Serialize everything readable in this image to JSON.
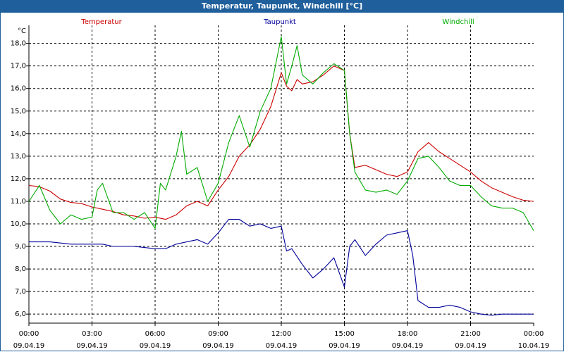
{
  "window": {
    "title": "Temperatur, Taupunkt, Windchill [°C]"
  },
  "chart_data": {
    "type": "line",
    "title": "Temperatur, Taupunkt, Windchill [°C]",
    "y_unit": "°C",
    "ylim": [
      5.6,
      18.8
    ],
    "y_ticks": [
      "6,0",
      "7,0",
      "8,0",
      "9,0",
      "10,0",
      "11,0",
      "12,0",
      "13,0",
      "14,0",
      "15,0",
      "16,0",
      "17,0",
      "18,0"
    ],
    "xlim": [
      0,
      24
    ],
    "x_ticks": [
      {
        "time": "00:00",
        "date": "09.04.19"
      },
      {
        "time": "03:00",
        "date": "09.04.19"
      },
      {
        "time": "06:00",
        "date": "09.04.19"
      },
      {
        "time": "09:00",
        "date": "09.04.19"
      },
      {
        "time": "12:00",
        "date": "09.04.19"
      },
      {
        "time": "15:00",
        "date": "09.04.19"
      },
      {
        "time": "18:00",
        "date": "09.04.19"
      },
      {
        "time": "21:00",
        "date": "09.04.19"
      },
      {
        "time": "00:00",
        "date": "10.04.19"
      }
    ],
    "grid": true,
    "legend_position": "top",
    "series": [
      {
        "name": "Temperatur",
        "color": "#cc0000",
        "x": [
          0,
          0.5,
          1,
          1.5,
          2,
          2.5,
          3,
          3.5,
          4,
          4.5,
          5,
          5.5,
          6,
          6.5,
          7,
          7.5,
          8,
          8.5,
          9,
          9.5,
          10,
          10.5,
          11,
          11.5,
          12,
          12.25,
          12.5,
          12.75,
          13,
          13.5,
          14,
          14.5,
          15,
          15.25,
          15.5,
          16,
          16.5,
          17,
          17.5,
          18,
          18.5,
          19,
          19.5,
          20,
          20.5,
          21,
          21.5,
          22,
          22.5,
          23,
          23.5,
          24
        ],
        "y": [
          11.7,
          11.65,
          11.45,
          11.1,
          10.95,
          10.9,
          10.75,
          10.65,
          10.55,
          10.4,
          10.35,
          10.25,
          10.3,
          10.2,
          10.4,
          10.8,
          11.0,
          10.8,
          11.5,
          12.1,
          13.0,
          13.5,
          14.2,
          15.2,
          16.7,
          16.1,
          15.9,
          16.4,
          16.2,
          16.3,
          16.6,
          17.0,
          16.8,
          14.0,
          12.5,
          12.6,
          12.4,
          12.2,
          12.1,
          12.3,
          13.2,
          13.6,
          13.2,
          12.9,
          12.6,
          12.3,
          11.9,
          11.6,
          11.4,
          11.2,
          11.05,
          11.0
        ]
      },
      {
        "name": "Taupunkt",
        "color": "#000099",
        "x": [
          0,
          0.5,
          1,
          1.5,
          2,
          2.5,
          3,
          3.5,
          4,
          4.5,
          5,
          5.5,
          6,
          6.5,
          7,
          7.5,
          8,
          8.5,
          9,
          9.5,
          10,
          10.5,
          11,
          11.5,
          12,
          12.25,
          12.5,
          13,
          13.5,
          14,
          14.5,
          15,
          15.25,
          15.5,
          16,
          16.5,
          17,
          17.5,
          18,
          18.25,
          18.5,
          19,
          19.5,
          20,
          20.5,
          21,
          21.5,
          22,
          22.5,
          23,
          23.5,
          24
        ],
        "y": [
          9.2,
          9.2,
          9.2,
          9.15,
          9.1,
          9.1,
          9.1,
          9.1,
          9.0,
          9.0,
          9.0,
          8.95,
          8.9,
          8.9,
          9.1,
          9.2,
          9.3,
          9.1,
          9.6,
          10.2,
          10.2,
          9.9,
          10.0,
          9.8,
          9.9,
          8.8,
          8.9,
          8.2,
          7.6,
          8.0,
          8.5,
          7.2,
          9.0,
          9.3,
          8.6,
          9.1,
          9.5,
          9.6,
          9.7,
          8.6,
          6.6,
          6.3,
          6.3,
          6.4,
          6.3,
          6.1,
          6.0,
          5.95,
          6.0,
          6.0,
          6.0,
          6.0
        ]
      },
      {
        "name": "Windchill",
        "color": "#00aa00",
        "x": [
          0,
          0.5,
          1,
          1.5,
          2,
          2.5,
          3,
          3.25,
          3.5,
          4,
          4.5,
          5,
          5.5,
          6,
          6.25,
          6.5,
          7,
          7.25,
          7.5,
          8,
          8.5,
          9,
          9.5,
          10,
          10.5,
          11,
          11.5,
          12,
          12.25,
          12.5,
          12.75,
          13,
          13.5,
          14,
          14.5,
          15,
          15.25,
          15.5,
          16,
          16.5,
          17,
          17.5,
          18,
          18.5,
          19,
          19.5,
          20,
          20.5,
          21,
          21.5,
          22,
          22.5,
          23,
          23.5,
          24
        ],
        "y": [
          11.0,
          11.7,
          10.6,
          10.0,
          10.4,
          10.2,
          10.3,
          11.5,
          11.8,
          10.5,
          10.5,
          10.2,
          10.5,
          9.8,
          11.8,
          11.5,
          13.0,
          14.1,
          12.2,
          12.5,
          11.0,
          11.8,
          13.6,
          14.8,
          13.4,
          15.0,
          16.0,
          18.3,
          16.2,
          17.0,
          17.9,
          16.6,
          16.2,
          16.7,
          17.1,
          16.8,
          14.0,
          12.3,
          11.5,
          11.4,
          11.5,
          11.3,
          11.9,
          12.9,
          13.0,
          12.5,
          11.9,
          11.7,
          11.7,
          11.2,
          10.8,
          10.7,
          10.7,
          10.5,
          9.7
        ]
      }
    ]
  }
}
